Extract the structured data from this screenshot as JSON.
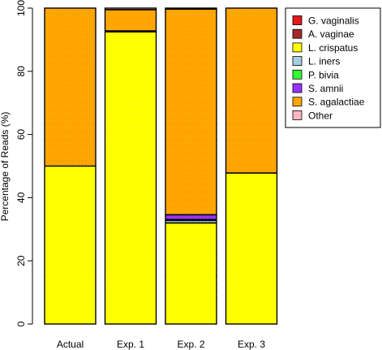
{
  "chart_data": {
    "type": "bar",
    "stacked": true,
    "categories": [
      "Actual",
      "Exp. 1",
      "Exp. 2",
      "Exp. 3"
    ],
    "ylabel": "Percentage of Reads (%)",
    "xlabel": "",
    "ylim": [
      0,
      100
    ],
    "yticks": [
      0,
      20,
      40,
      60,
      80,
      100
    ],
    "legend_position": "top-right",
    "series": [
      {
        "name": "G. vaginalis",
        "color": "#e31a1c",
        "values": [
          0,
          0,
          0,
          0
        ]
      },
      {
        "name": "A. vaginae",
        "color": "#a52a2a",
        "values": [
          0,
          0,
          0,
          0
        ]
      },
      {
        "name": "L. crispatus",
        "color": "#ffff00",
        "values": [
          50,
          92.5,
          32,
          47.8
        ]
      },
      {
        "name": "L. iners",
        "color": "#a6cee3",
        "values": [
          0,
          0.3,
          0.8,
          0
        ]
      },
      {
        "name": "P. bivia",
        "color": "#33ff33",
        "values": [
          0,
          0,
          0.3,
          0
        ]
      },
      {
        "name": "S. amnii",
        "color": "#9933ff",
        "values": [
          0,
          0,
          1.5,
          0
        ]
      },
      {
        "name": "S. agalactiae",
        "color": "#ffa500",
        "values": [
          50,
          6.7,
          65.1,
          52.2
        ]
      },
      {
        "name": "Other",
        "color": "#ffb6c1",
        "values": [
          0,
          0.5,
          0.3,
          0
        ]
      }
    ]
  }
}
